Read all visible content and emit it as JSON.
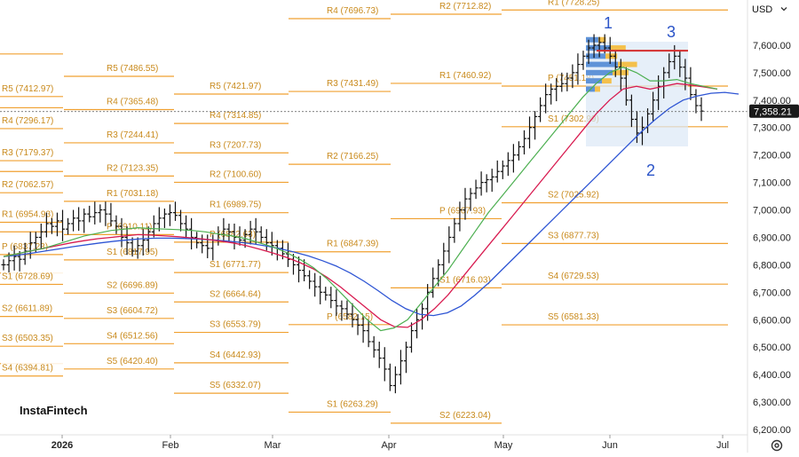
{
  "currency": "USD",
  "brand": "InstaFintech",
  "current_price_label": "7,358.21",
  "chart_data": {
    "type": "ohlc",
    "y_axis": {
      "min": 6200,
      "max": 7700,
      "step": 100,
      "ticks": [
        "7,600.00",
        "7,500.00",
        "7,400.00",
        "7,300.00",
        "7,200.00",
        "7,100.00",
        "7,000.00",
        "6,900.00",
        "6,800.00",
        "6,700.00",
        "6,600.00",
        "6,500.00",
        "6,400.00",
        "6,300.00",
        "6,200.00"
      ]
    },
    "x_axis": {
      "labels": [
        "2026",
        "Feb",
        "Mar",
        "Apr",
        "May",
        "Jun",
        "Jul"
      ]
    },
    "current_price": 7358.21,
    "resistance_level": 7580,
    "wave_labels": [
      "1",
      "2",
      "3"
    ],
    "pivot_periods": [
      {
        "levels": [
          {
            "label": "R5 (7412.97)",
            "value": 7412.97
          },
          {
            "label": "R4 (7296.17)",
            "value": 7296.17
          },
          {
            "label": "R3 (7179.37)",
            "value": 7179.37
          },
          {
            "label": "R2 (7062.57)",
            "value": 7062.57
          },
          {
            "label": "R1 (6954.93)",
            "value": 6954.93
          },
          {
            "label": "P (6837.23)",
            "value": 6837.23
          },
          {
            "label": "S1 (6728.69)",
            "value": 6728.69
          },
          {
            "label": "S2 (6611.89)",
            "value": 6611.89
          },
          {
            "label": "S3 (6503.35)",
            "value": 6503.35
          },
          {
            "label": "S4 (6394.81)",
            "value": 6394.81
          }
        ],
        "extra_levels": [
          7568,
          7372,
          7140,
          6920,
          6770,
          6440
        ]
      },
      {
        "levels": [
          {
            "label": "R5 (7486.55)",
            "value": 7486.55
          },
          {
            "label": "R4 (7365.48)",
            "value": 7365.48
          },
          {
            "label": "R3 (7244.41)",
            "value": 7244.41
          },
          {
            "label": "R2 (7123.35)",
            "value": 7123.35
          },
          {
            "label": "R1 (7031.18)",
            "value": 7031.18
          },
          {
            "label": "P (6910.11)",
            "value": 6910.11
          },
          {
            "label": "S1 (6817.95)",
            "value": 6817.95
          },
          {
            "label": "S2 (6696.89)",
            "value": 6696.89
          },
          {
            "label": "S3 (6604.72)",
            "value": 6604.72
          },
          {
            "label": "S4 (6512.56)",
            "value": 6512.56
          },
          {
            "label": "S5 (6420.40)",
            "value": 6420.4
          }
        ]
      },
      {
        "levels": [
          {
            "label": "R5 (7421.97)",
            "value": 7421.97
          },
          {
            "label": "R4 (7314.85)",
            "value": 7314.85
          },
          {
            "label": "R3 (7207.73)",
            "value": 7207.73
          },
          {
            "label": "R2 (7100.60)",
            "value": 7100.6
          },
          {
            "label": "R1 (6989.75)",
            "value": 6989.75
          },
          {
            "label": "P (6882.63)",
            "value": 6882.63
          },
          {
            "label": "S1 (6771.77)",
            "value": 6771.77
          },
          {
            "label": "S2 (6664.64)",
            "value": 6664.64
          },
          {
            "label": "S3 (6553.79)",
            "value": 6553.79
          },
          {
            "label": "S4 (6442.93)",
            "value": 6442.93
          },
          {
            "label": "S5 (6332.07)",
            "value": 6332.07
          }
        ]
      },
      {
        "levels": [
          {
            "label": "R4 (7696.73)",
            "value": 7696.73
          },
          {
            "label": "R3 (7431.49)",
            "value": 7431.49
          },
          {
            "label": "R2 (7166.25)",
            "value": 7166.25
          },
          {
            "label": "R1 (6847.39)",
            "value": 6847.39
          },
          {
            "label": "P (6582.15)",
            "value": 6582.15
          },
          {
            "label": "S1 (6263.29)",
            "value": 6263.29
          }
        ]
      },
      {
        "levels": [
          {
            "label": "R2 (7712.82)",
            "value": 7712.82
          },
          {
            "label": "R1 (7460.92)",
            "value": 7460.92
          },
          {
            "label": "P (6967.93)",
            "value": 6967.93
          },
          {
            "label": "S1 (6716.03)",
            "value": 6716.03
          },
          {
            "label": "S2 (6223.04)",
            "value": 6223.04
          }
        ]
      },
      {
        "levels": [
          {
            "label": "R1 (7728.25)",
            "value": 7728.25
          },
          {
            "label": "P (7451.18)",
            "value": 7451.18
          },
          {
            "label": "S1 (7302.99)",
            "value": 7302.99
          },
          {
            "label": "S2 (7025.92)",
            "value": 7025.92
          },
          {
            "label": "S3 (6877.73)",
            "value": 6877.73
          },
          {
            "label": "S4 (6729.53)",
            "value": 6729.53
          },
          {
            "label": "S5 (6581.33)",
            "value": 6581.33
          }
        ]
      }
    ],
    "price_series": [
      6800,
      6815,
      6830,
      6820,
      6850,
      6880,
      6900,
      6920,
      6950,
      6940,
      6960,
      6930,
      6950,
      6970,
      6960,
      6985,
      6975,
      6990,
      7000,
      6985,
      6960,
      6940,
      6900,
      6880,
      6850,
      6870,
      6890,
      6920,
      6950,
      6970,
      6985,
      6990,
      6980,
      6950,
      6930,
      6900,
      6880,
      6870,
      6860,
      6890,
      6910,
      6930,
      6920,
      6900,
      6890,
      6910,
      6930,
      6920,
      6900,
      6880,
      6870,
      6860,
      6840,
      6820,
      6800,
      6780,
      6760,
      6740,
      6720,
      6700,
      6690,
      6670,
      6650,
      6640,
      6620,
      6600,
      6580,
      6560,
      6520,
      6490,
      6460,
      6420,
      6360,
      6400,
      6450,
      6500,
      6560,
      6600,
      6640,
      6700,
      6750,
      6800,
      6850,
      6900,
      6950,
      7000,
      7040,
      7060,
      7080,
      7100,
      7110,
      7120,
      7140,
      7160,
      7180,
      7200,
      7230,
      7260,
      7300,
      7340,
      7380,
      7420,
      7440,
      7450,
      7460,
      7480,
      7500,
      7530,
      7560,
      7590,
      7600,
      7610,
      7590,
      7560,
      7520,
      7480,
      7400,
      7330,
      7280,
      7300,
      7350,
      7400,
      7450,
      7500,
      7540,
      7560,
      7520,
      7480,
      7420,
      7380,
      7360
    ],
    "ma_fast": [
      6830,
      6840,
      6850,
      6860,
      6875,
      6890,
      6905,
      6915,
      6925,
      6930,
      6935,
      6932,
      6930,
      6928,
      6925,
      6920,
      6912,
      6905,
      6895,
      6880,
      6865,
      6845,
      6820,
      6790,
      6750,
      6700,
      6650,
      6600,
      6560,
      6570,
      6600,
      6660,
      6720,
      6780,
      6850,
      6920,
      6990,
      7050,
      7110,
      7170,
      7230,
      7290,
      7350,
      7410,
      7460,
      7500,
      7520,
      7500,
      7470,
      7470,
      7475,
      7460,
      7450,
      7440
    ],
    "ma_mid": [
      6830,
      6840,
      6850,
      6860,
      6870,
      6880,
      6888,
      6895,
      6900,
      6905,
      6910,
      6908,
      6905,
      6902,
      6898,
      6893,
      6887,
      6880,
      6870,
      6857,
      6843,
      6827,
      6808,
      6785,
      6755,
      6720,
      6680,
      6640,
      6600,
      6575,
      6572,
      6600,
      6640,
      6690,
      6750,
      6810,
      6870,
      6930,
      6990,
      7050,
      7110,
      7170,
      7230,
      7290,
      7350,
      7400,
      7440,
      7450,
      7440,
      7450,
      7460,
      7455,
      7448,
      7440
    ],
    "ma_slow": [
      6830,
      6835,
      6842,
      6850,
      6858,
      6866,
      6873,
      6880,
      6886,
      6891,
      6895,
      6897,
      6897,
      6896,
      6894,
      6891,
      6887,
      6882,
      6876,
      6868,
      6858,
      6846,
      6832,
      6815,
      6795,
      6770,
      6740,
      6706,
      6670,
      6640,
      6620,
      6615,
      6625,
      6650,
      6690,
      6735,
      6785,
      6835,
      6885,
      6935,
      6985,
      7035,
      7085,
      7135,
      7185,
      7235,
      7285,
      7330,
      7370,
      7400,
      7415,
      7425,
      7428,
      7422
    ]
  }
}
